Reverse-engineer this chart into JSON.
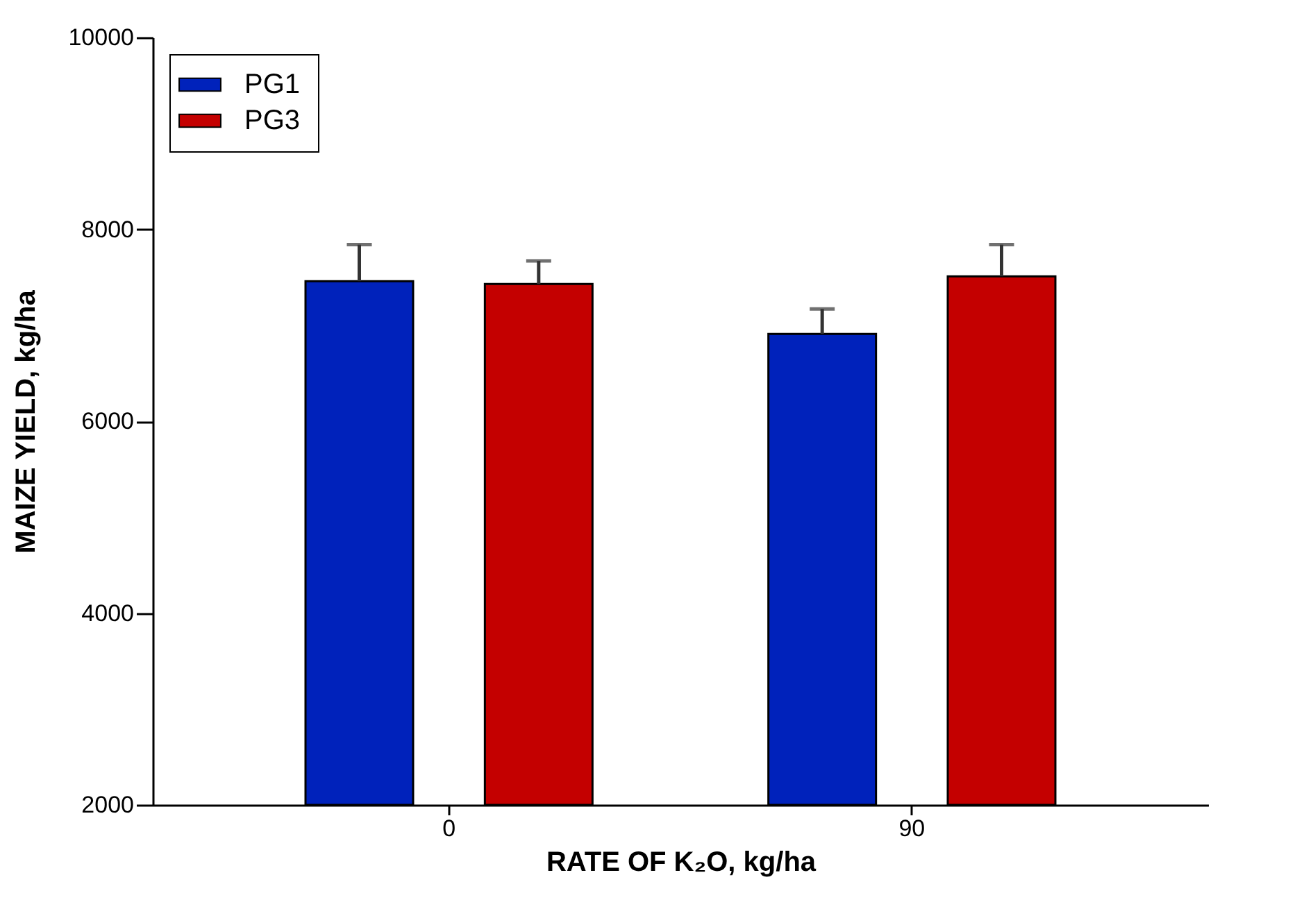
{
  "chart_data": {
    "type": "bar",
    "xlabel": "RATE OF K₂O, kg/ha",
    "ylabel": "MAIZE YIELD, kg/ha",
    "categories": [
      "0",
      "90"
    ],
    "series": [
      {
        "name": "PG1",
        "color": "#0022bb",
        "values": [
          7460,
          6910
        ],
        "errors": [
          [
            7460,
            7840
          ],
          [
            6910,
            7170
          ]
        ]
      },
      {
        "name": "PG3",
        "color": "#c40000",
        "values": [
          7430,
          7510
        ],
        "errors": [
          [
            7430,
            7670
          ],
          [
            7510,
            7840
          ]
        ]
      }
    ],
    "ylim": [
      2000,
      10000
    ],
    "yticks": [
      2000,
      4000,
      6000,
      8000,
      10000
    ],
    "grid": false,
    "legend": "top left"
  }
}
